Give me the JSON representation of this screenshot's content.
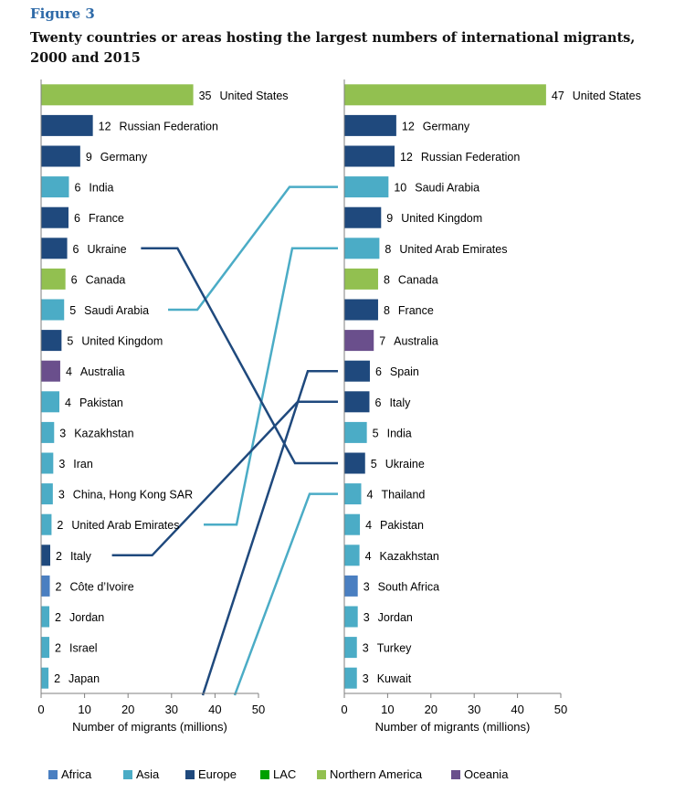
{
  "figure_label": "Figure 3",
  "title": "Twenty countries or areas hosting the largest numbers of international migrants, 2000 and 2015",
  "colors": {
    "Africa": "#4a7fc1",
    "Asia": "#4bacc6",
    "Europe": "#1f497d",
    "LAC": "#00a000",
    "Northern America": "#92c050",
    "Oceania": "#6a4f8c"
  },
  "chart_data": [
    {
      "type": "bar",
      "orientation": "horizontal",
      "categories": [
        "United States",
        "Russian Federation",
        "Germany",
        "India",
        "France",
        "Ukraine",
        "Canada",
        "Saudi Arabia",
        "United Kingdom",
        "Australia",
        "Pakistan",
        "Kazakhstan",
        "Iran",
        "China, Hong Kong SAR",
        "United Arab Emirates",
        "Italy",
        "Côte d’Ivoire",
        "Jordan",
        "Israel",
        "Japan"
      ],
      "values": [
        35,
        12,
        9,
        6,
        6,
        6,
        6,
        5,
        5,
        4,
        4,
        3,
        3,
        3,
        2,
        2,
        2,
        2,
        2,
        2
      ],
      "bar_values": [
        35,
        11.9,
        9.0,
        6.4,
        6.3,
        6.0,
        5.6,
        5.3,
        4.7,
        4.4,
        4.2,
        3.0,
        2.8,
        2.7,
        2.4,
        2.1,
        2.0,
        1.9,
        1.9,
        1.7
      ],
      "regions": [
        "Northern America",
        "Europe",
        "Europe",
        "Asia",
        "Europe",
        "Europe",
        "Northern America",
        "Asia",
        "Europe",
        "Oceania",
        "Asia",
        "Asia",
        "Asia",
        "Asia",
        "Asia",
        "Europe",
        "Africa",
        "Asia",
        "Asia",
        "Asia"
      ],
      "xlabel": "Number of migrants (millions)",
      "xlim": [
        0,
        50
      ],
      "xticks": [
        0,
        10,
        20,
        30,
        40,
        50
      ]
    },
    {
      "type": "bar",
      "orientation": "horizontal",
      "categories": [
        "United States",
        "Germany",
        "Russian Federation",
        "Saudi Arabia",
        "United Kingdom",
        "United Arab Emirates",
        "Canada",
        "France",
        "Australia",
        "Spain",
        "Italy",
        "India",
        "Ukraine",
        "Thailand",
        "Pakistan",
        "Kazakhstan",
        "South Africa",
        "Jordan",
        "Turkey",
        "Kuwait"
      ],
      "values": [
        47,
        12,
        12,
        10,
        9,
        8,
        8,
        8,
        7,
        6,
        6,
        5,
        5,
        4,
        4,
        4,
        3,
        3,
        3,
        3
      ],
      "bar_values": [
        46.6,
        12.0,
        11.6,
        10.2,
        8.5,
        8.1,
        7.8,
        7.8,
        6.8,
        5.9,
        5.8,
        5.2,
        4.8,
        3.9,
        3.6,
        3.5,
        3.1,
        3.1,
        2.9,
        2.9
      ],
      "regions": [
        "Northern America",
        "Europe",
        "Europe",
        "Asia",
        "Europe",
        "Asia",
        "Northern America",
        "Europe",
        "Oceania",
        "Europe",
        "Europe",
        "Asia",
        "Europe",
        "Asia",
        "Asia",
        "Asia",
        "Africa",
        "Asia",
        "Asia",
        "Asia"
      ],
      "xlabel": "Number of migrants (millions)",
      "xlim": [
        0,
        50
      ],
      "xticks": [
        0,
        10,
        20,
        30,
        40,
        50
      ]
    }
  ],
  "connectors": [
    {
      "from": "Saudi Arabia",
      "to": "Saudi Arabia",
      "region": "Asia"
    },
    {
      "from": "United Arab Emirates",
      "to": "United Arab Emirates",
      "region": "Asia"
    },
    {
      "from": "Ukraine",
      "to": "Ukraine",
      "region": "Europe"
    },
    {
      "from": "Italy",
      "to": "Italy",
      "region": "Europe"
    },
    {
      "from": null,
      "to": "Spain",
      "region": "Europe"
    },
    {
      "from": null,
      "to": "Thailand",
      "region": "Asia"
    }
  ],
  "legend": {
    "placement": "bottom",
    "items": [
      {
        "label": "Africa",
        "region": "Africa"
      },
      {
        "label": "Asia",
        "region": "Asia"
      },
      {
        "label": "Europe",
        "region": "Europe"
      },
      {
        "label": "LAC",
        "region": "LAC"
      },
      {
        "label": "Northern America",
        "region": "Northern America"
      },
      {
        "label": "Oceania",
        "region": "Oceania"
      }
    ]
  }
}
